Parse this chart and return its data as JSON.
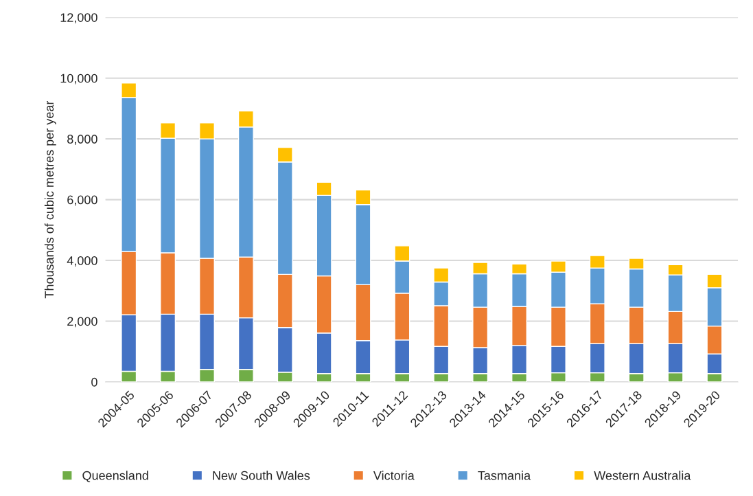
{
  "chart_data": {
    "type": "bar",
    "stacked": true,
    "ylabel": "Thousands of cubic metres per year",
    "categories": [
      "2004-05",
      "2005-06",
      "2006-07",
      "2007-08",
      "2008-09",
      "2009-10",
      "2010-11",
      "2011-12",
      "2012-13",
      "2013-14",
      "2014-15",
      "2015-16",
      "2016-17",
      "2017-18",
      "2018-19",
      "2019-20"
    ],
    "series": [
      {
        "name": "Queensland",
        "color": "#70ad47",
        "values": [
          350,
          350,
          410,
          410,
          320,
          275,
          275,
          275,
          275,
          275,
          275,
          300,
          300,
          275,
          300,
          275
        ]
      },
      {
        "name": "New South Wales",
        "color": "#4472c4",
        "values": [
          1860,
          1880,
          1820,
          1700,
          1470,
          1335,
          1085,
          1105,
          895,
          855,
          925,
          870,
          960,
          985,
          960,
          645
        ]
      },
      {
        "name": "Victoria",
        "color": "#ed7d31",
        "values": [
          2080,
          2020,
          1840,
          2000,
          1750,
          1880,
          1840,
          1540,
          1340,
          1330,
          1280,
          1290,
          1310,
          1200,
          1060,
          920
        ]
      },
      {
        "name": "Tasmania",
        "color": "#5b9bd5",
        "values": [
          5070,
          3770,
          3930,
          4280,
          3700,
          2650,
          2640,
          1060,
          780,
          1100,
          1080,
          1150,
          1180,
          1260,
          1200,
          1260
        ]
      },
      {
        "name": "Western Australia",
        "color": "#ffc000",
        "values": [
          480,
          510,
          530,
          530,
          480,
          430,
          480,
          500,
          460,
          370,
          320,
          370,
          410,
          350,
          340,
          440
        ]
      }
    ],
    "ylim": [
      0,
      12000
    ],
    "yticks": [
      0,
      {
        "value": 2000,
        "label": "2,000"
      },
      {
        "value": 4000,
        "label": "4,000"
      },
      {
        "value": 6000,
        "label": "6,000"
      },
      {
        "value": 8000,
        "label": "8,000"
      },
      {
        "value": 10000,
        "label": "10,000"
      },
      {
        "value": 12000,
        "label": "12,000"
      }
    ],
    "grid": "y",
    "legend": "bottom"
  }
}
